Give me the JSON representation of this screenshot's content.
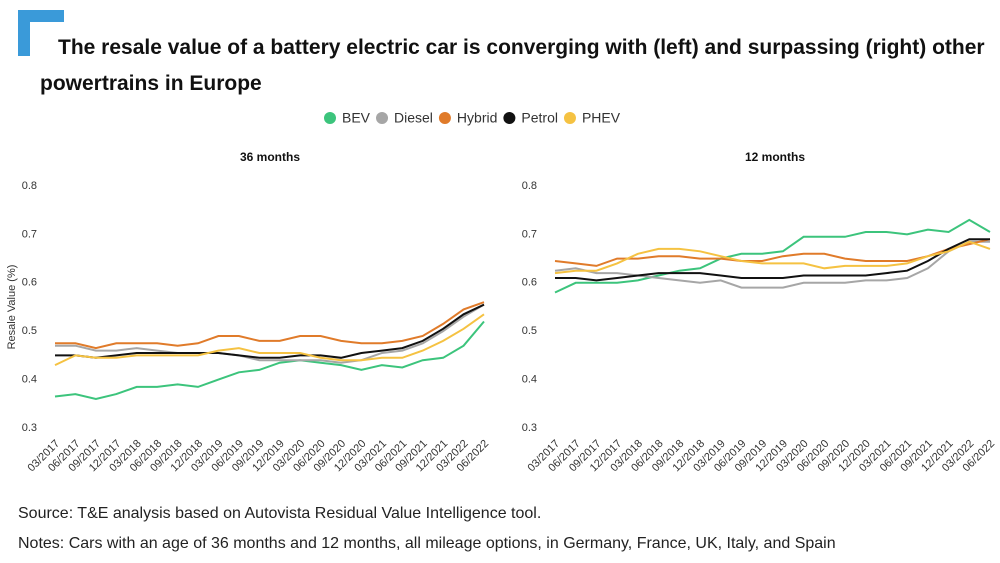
{
  "title": "The resale value of a battery electric car is converging with (left) and surpassing (right) other powertrains in Europe",
  "source": "Source: T&E analysis based on Autovista Residual Value Intelligence tool.",
  "notes": "Notes: Cars with an age of 36 months and 12 months, all mileage options, in Germany, France, UK, Italy, and Spain",
  "chart_data": [
    {
      "type": "line",
      "subtitle": "36 months",
      "ylabel": "Resale Value (%)",
      "categories": [
        "03/2017",
        "06/2017",
        "09/2017",
        "12/2017",
        "03/2018",
        "06/2018",
        "09/2018",
        "12/2018",
        "03/2019",
        "06/2019",
        "09/2019",
        "12/2019",
        "03/2020",
        "06/2020",
        "09/2020",
        "12/2020",
        "03/2021",
        "06/2021",
        "09/2021",
        "12/2021",
        "03/2022",
        "06/2022"
      ],
      "ylim": [
        0.3,
        0.8
      ],
      "yticks": [
        0.3,
        0.4,
        0.5,
        0.6,
        0.7,
        0.8
      ],
      "series": [
        {
          "name": "BEV",
          "color": "#3cc47c",
          "values": [
            0.365,
            0.37,
            0.36,
            0.37,
            0.385,
            0.385,
            0.39,
            0.385,
            0.4,
            0.415,
            0.42,
            0.435,
            0.44,
            0.435,
            0.43,
            0.42,
            0.43,
            0.425,
            0.44,
            0.445,
            0.47,
            0.52
          ]
        },
        {
          "name": "Diesel",
          "color": "#a6a6a6",
          "values": [
            0.47,
            0.47,
            0.46,
            0.46,
            0.465,
            0.46,
            0.455,
            0.455,
            0.455,
            0.45,
            0.44,
            0.44,
            0.44,
            0.44,
            0.435,
            0.44,
            0.455,
            0.46,
            0.475,
            0.5,
            0.53,
            0.555
          ]
        },
        {
          "name": "Hybrid",
          "color": "#e07b2a",
          "values": [
            0.475,
            0.475,
            0.465,
            0.475,
            0.475,
            0.475,
            0.47,
            0.475,
            0.49,
            0.49,
            0.48,
            0.48,
            0.49,
            0.49,
            0.48,
            0.475,
            0.475,
            0.48,
            0.49,
            0.515,
            0.545,
            0.56
          ]
        },
        {
          "name": "Petrol",
          "color": "#111111",
          "values": [
            0.45,
            0.45,
            0.445,
            0.45,
            0.455,
            0.455,
            0.455,
            0.455,
            0.455,
            0.45,
            0.445,
            0.445,
            0.45,
            0.45,
            0.445,
            0.455,
            0.46,
            0.465,
            0.48,
            0.505,
            0.535,
            0.555
          ]
        },
        {
          "name": "PHEV",
          "color": "#f5c242",
          "values": [
            0.43,
            0.45,
            0.445,
            0.445,
            0.45,
            0.45,
            0.45,
            0.45,
            0.46,
            0.465,
            0.455,
            0.455,
            0.455,
            0.445,
            0.44,
            0.44,
            0.445,
            0.445,
            0.46,
            0.48,
            0.505,
            0.535
          ]
        }
      ]
    },
    {
      "type": "line",
      "subtitle": "12 months",
      "categories": [
        "03/2017",
        "06/2017",
        "09/2017",
        "12/2017",
        "03/2018",
        "06/2018",
        "09/2018",
        "12/2018",
        "03/2019",
        "06/2019",
        "09/2019",
        "12/2019",
        "03/2020",
        "06/2020",
        "09/2020",
        "12/2020",
        "03/2021",
        "06/2021",
        "09/2021",
        "12/2021",
        "03/2022",
        "06/2022"
      ],
      "ylim": [
        0.3,
        0.8
      ],
      "yticks": [
        0.3,
        0.4,
        0.5,
        0.6,
        0.7,
        0.8
      ],
      "series": [
        {
          "name": "BEV",
          "color": "#3cc47c",
          "values": [
            0.58,
            0.6,
            0.6,
            0.6,
            0.605,
            0.615,
            0.625,
            0.63,
            0.65,
            0.66,
            0.66,
            0.665,
            0.695,
            0.695,
            0.695,
            0.705,
            0.705,
            0.7,
            0.71,
            0.705,
            0.73,
            0.705
          ]
        },
        {
          "name": "Diesel",
          "color": "#a6a6a6",
          "values": [
            0.625,
            0.63,
            0.62,
            0.62,
            0.615,
            0.61,
            0.605,
            0.6,
            0.605,
            0.59,
            0.59,
            0.59,
            0.6,
            0.6,
            0.6,
            0.605,
            0.605,
            0.61,
            0.63,
            0.665,
            0.685,
            0.685
          ]
        },
        {
          "name": "Hybrid",
          "color": "#e07b2a",
          "values": [
            0.645,
            0.64,
            0.635,
            0.65,
            0.65,
            0.655,
            0.655,
            0.65,
            0.65,
            0.645,
            0.645,
            0.655,
            0.66,
            0.66,
            0.65,
            0.645,
            0.645,
            0.645,
            0.655,
            0.67,
            0.68,
            0.69
          ]
        },
        {
          "name": "Petrol",
          "color": "#111111",
          "values": [
            0.61,
            0.61,
            0.605,
            0.61,
            0.615,
            0.62,
            0.62,
            0.62,
            0.615,
            0.61,
            0.61,
            0.61,
            0.615,
            0.615,
            0.615,
            0.615,
            0.62,
            0.625,
            0.645,
            0.67,
            0.69,
            0.69
          ]
        },
        {
          "name": "PHEV",
          "color": "#f5c242",
          "values": [
            0.62,
            0.625,
            0.625,
            0.64,
            0.66,
            0.67,
            0.67,
            0.665,
            0.655,
            0.645,
            0.64,
            0.64,
            0.64,
            0.63,
            0.635,
            0.635,
            0.635,
            0.64,
            0.655,
            0.665,
            0.685,
            0.67
          ]
        }
      ]
    }
  ]
}
